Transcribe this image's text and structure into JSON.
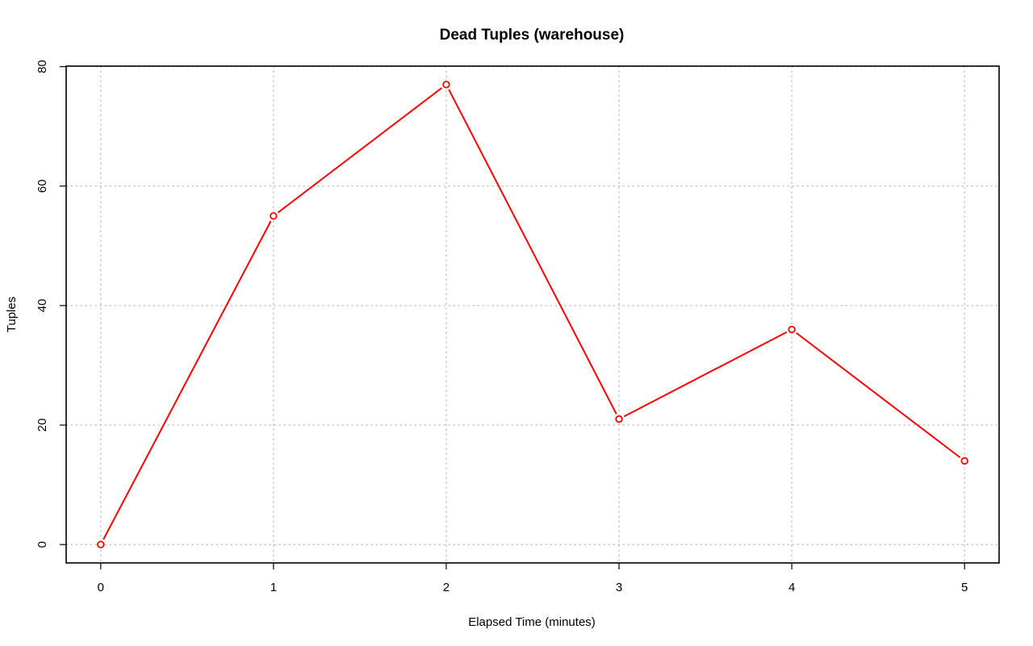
{
  "chart_data": {
    "type": "line",
    "title": "Dead Tuples (warehouse)",
    "xlabel": "Elapsed Time (minutes)",
    "ylabel": "Tuples",
    "x": [
      0,
      1,
      2,
      3,
      4,
      5
    ],
    "xticks": [
      "0",
      "1",
      "2",
      "3",
      "4",
      "5"
    ],
    "yticks": [
      "0",
      "20",
      "40",
      "60",
      "80"
    ],
    "xlim": [
      -0.2,
      5.2
    ],
    "ylim": [
      -3.08,
      80.08
    ],
    "grid": true,
    "series": [
      {
        "values": [
          0,
          55,
          77,
          21,
          36,
          14
        ],
        "color": "#ff0000",
        "marker": "open-circle"
      }
    ]
  }
}
